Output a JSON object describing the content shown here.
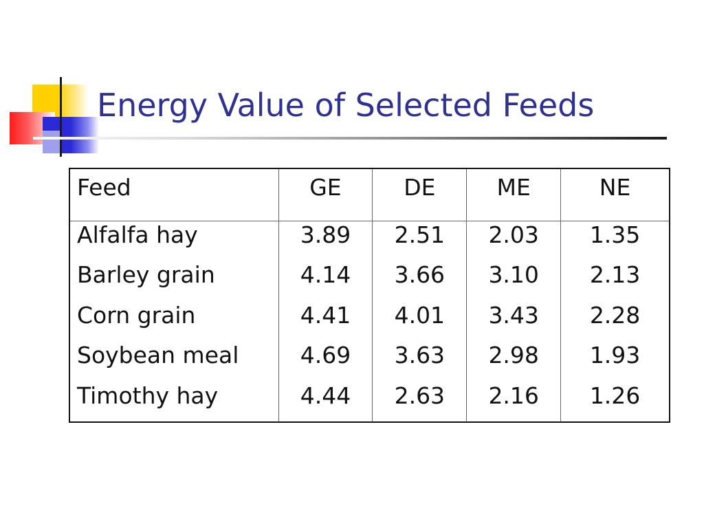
{
  "slide": {
    "title": "Energy Value of Selected Feeds",
    "accent_color": "#2e3192"
  },
  "table": {
    "headers": [
      "Feed",
      "GE",
      "DE",
      "ME",
      "NE"
    ],
    "rows": [
      {
        "feed": "Alfalfa hay",
        "ge": "3.89",
        "de": "2.51",
        "me": "2.03",
        "ne": "1.35"
      },
      {
        "feed": "Barley grain",
        "ge": "4.14",
        "de": "3.66",
        "me": "3.10",
        "ne": "2.13"
      },
      {
        "feed": "Corn grain",
        "ge": "4.41",
        "de": "4.01",
        "me": "3.43",
        "ne": "2.28"
      },
      {
        "feed": "Soybean meal",
        "ge": "4.69",
        "de": "3.63",
        "me": "2.98",
        "ne": "1.93"
      },
      {
        "feed": "Timothy hay",
        "ge": "4.44",
        "de": "2.63",
        "me": "2.16",
        "ne": "1.26"
      }
    ]
  }
}
